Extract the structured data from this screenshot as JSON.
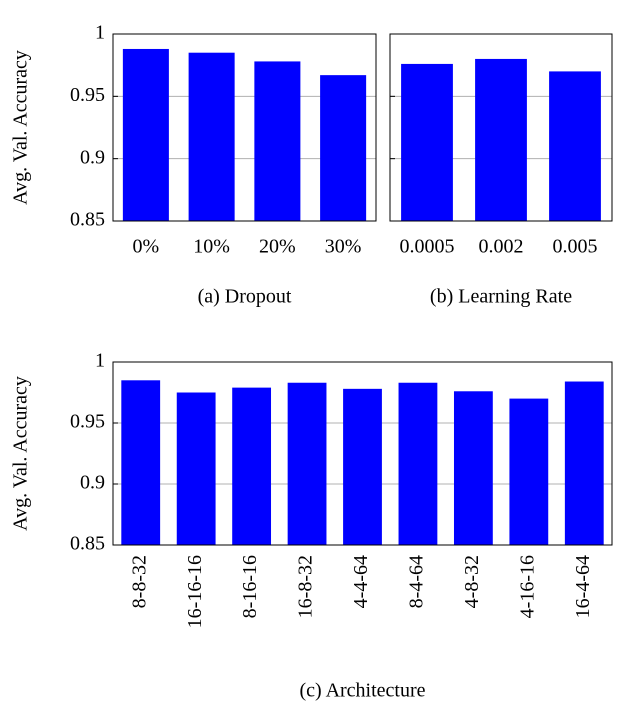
{
  "chart_data": [
    {
      "type": "bar",
      "title": "(a) Dropout",
      "ylabel": "Avg. Val. Accuracy",
      "categories": [
        "0%",
        "10%",
        "20%",
        "30%"
      ],
      "values": [
        0.988,
        0.985,
        0.978,
        0.967
      ],
      "color": "#0000ff",
      "ylim": [
        0.85,
        1
      ],
      "yticks": [
        0.85,
        0.9,
        0.95,
        1
      ],
      "grid": true,
      "ytick_labels": true
    },
    {
      "type": "bar",
      "title": "(b) Learning Rate",
      "categories": [
        "0.0005",
        "0.002",
        "0.005"
      ],
      "values": [
        0.976,
        0.98,
        0.97
      ],
      "color": "#0000ff",
      "ylim": [
        0.85,
        1
      ],
      "yticks": [
        0.85,
        0.9,
        0.95,
        1
      ],
      "grid": true,
      "ytick_labels": false
    },
    {
      "type": "bar",
      "title": "(c) Architecture",
      "ylabel": "Avg. Val. Accuracy",
      "categories": [
        "8-8-32",
        "16-16-16",
        "8-16-16",
        "16-8-32",
        "4-4-64",
        "8-4-64",
        "4-8-32",
        "4-16-16",
        "16-4-64"
      ],
      "values": [
        0.985,
        0.975,
        0.979,
        0.983,
        0.978,
        0.983,
        0.976,
        0.97,
        0.984
      ],
      "color": "#0000ff",
      "ylim": [
        0.85,
        1
      ],
      "yticks": [
        0.85,
        0.9,
        0.95,
        1
      ],
      "grid": true,
      "ytick_labels": true,
      "rotate_labels": true
    }
  ]
}
